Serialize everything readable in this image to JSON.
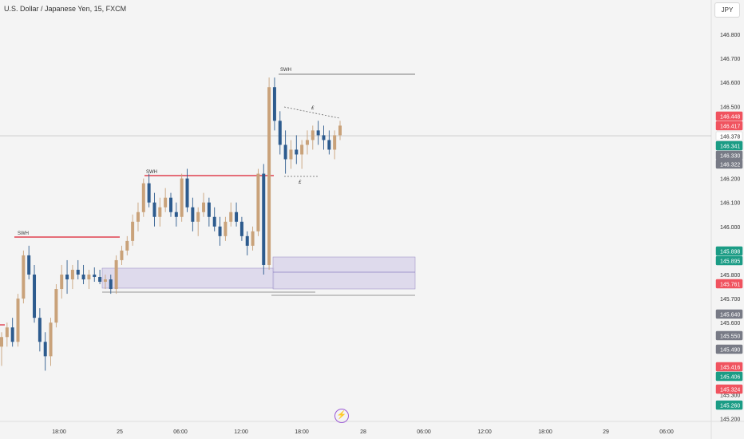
{
  "symbol_title": "U.S. Dollar / Japanese Yen, 15, FXCM",
  "currency": "JPY",
  "y_axis_ticks": [
    "146.800",
    "146.700",
    "146.600",
    "146.500",
    "146.200",
    "146.100",
    "146.000",
    "145.800",
    "145.700",
    "145.600",
    "145.300",
    "145.200"
  ],
  "x_axis_ticks": [
    "18:00",
    "25",
    "06:00",
    "12:00",
    "18:00",
    "28",
    "06:00",
    "12:00",
    "18:00",
    "29",
    "06:00"
  ],
  "price_labels": [
    {
      "text": "146.448",
      "color": "#f0535f"
    },
    {
      "text": "146.417",
      "color": "#f0535f"
    },
    {
      "text": "146.378",
      "color": "#ffffff",
      "text_color": "#333333"
    },
    {
      "text": "146.341",
      "color": "#1b9c85"
    },
    {
      "text": "146.330",
      "color": "#787b86"
    },
    {
      "text": "146.322",
      "color": "#787b86"
    },
    {
      "text": "145.898",
      "color": "#1b9c85"
    },
    {
      "text": "145.895",
      "color": "#1b9c85"
    },
    {
      "text": "145.761",
      "color": "#f0535f"
    },
    {
      "text": "145.640",
      "color": "#787b86"
    },
    {
      "text": "145.550",
      "color": "#787b86"
    },
    {
      "text": "145.490",
      "color": "#787b86"
    },
    {
      "text": "145.416",
      "color": "#f0535f"
    },
    {
      "text": "145.406",
      "color": "#1b9c85"
    },
    {
      "text": "145.324",
      "color": "#f0535f"
    },
    {
      "text": "145.260",
      "color": "#1b9c85"
    }
  ],
  "annotations": {
    "swh": "SWH",
    "eq": "£"
  },
  "colors": {
    "up": "#c9a27a",
    "down": "#2d5b8e",
    "swh_red": "#e0404f",
    "zone_fill": "#d7d2ea",
    "zone_border": "#a095c8"
  },
  "lightning_icon": "lightning-icon",
  "chart_data": {
    "type": "candlestick",
    "x_ticks": [
      "18:00",
      "25",
      "06:00",
      "12:00",
      "18:00",
      "28",
      "06:00",
      "12:00",
      "18:00",
      "29",
      "06:00"
    ],
    "y_ticks": [
      "146.800",
      "146.700",
      "146.600",
      "146.500",
      "146.200",
      "146.100",
      "146.000",
      "145.800",
      "145.700",
      "145.600",
      "145.300",
      "145.200"
    ],
    "ylim": [
      145.18,
      146.86
    ],
    "swh_levels": [
      145.935,
      146.216,
      146.64
    ],
    "candles": [
      [
        145.5,
        145.56,
        145.42,
        145.54
      ],
      [
        145.54,
        145.6,
        145.5,
        145.58
      ],
      [
        145.58,
        145.62,
        145.5,
        145.52
      ],
      [
        145.52,
        145.72,
        145.5,
        145.7
      ],
      [
        145.7,
        145.9,
        145.68,
        145.88
      ],
      [
        145.88,
        145.92,
        145.78,
        145.8
      ],
      [
        145.8,
        145.84,
        145.6,
        145.62
      ],
      [
        145.62,
        145.66,
        145.48,
        145.52
      ],
      [
        145.52,
        145.56,
        145.4,
        145.46
      ],
      [
        145.46,
        145.62,
        145.42,
        145.6
      ],
      [
        145.6,
        145.76,
        145.58,
        145.74
      ],
      [
        145.74,
        145.84,
        145.7,
        145.8
      ],
      [
        145.8,
        145.86,
        145.72,
        145.78
      ],
      [
        145.78,
        145.84,
        145.74,
        145.82
      ],
      [
        145.82,
        145.86,
        145.78,
        145.8
      ],
      [
        145.8,
        145.84,
        145.76,
        145.78
      ],
      [
        145.78,
        145.82,
        145.74,
        145.8
      ],
      [
        145.8,
        145.83,
        145.77,
        145.79
      ],
      [
        145.79,
        145.82,
        145.76,
        145.77
      ],
      [
        145.77,
        145.8,
        145.74,
        145.78
      ],
      [
        145.78,
        145.8,
        145.72,
        145.74
      ],
      [
        145.74,
        145.88,
        145.72,
        145.86
      ],
      [
        145.86,
        145.92,
        145.84,
        145.9
      ],
      [
        145.9,
        145.96,
        145.88,
        145.94
      ],
      [
        145.94,
        146.05,
        145.92,
        146.02
      ],
      [
        146.02,
        146.1,
        145.98,
        146.06
      ],
      [
        146.06,
        146.2,
        146.04,
        146.18
      ],
      [
        146.18,
        146.22,
        146.08,
        146.1
      ],
      [
        146.1,
        146.14,
        146.0,
        146.04
      ],
      [
        146.04,
        146.12,
        146.0,
        146.08
      ],
      [
        146.08,
        146.16,
        146.06,
        146.12
      ],
      [
        146.12,
        146.14,
        146.04,
        146.06
      ],
      [
        146.06,
        146.1,
        146.0,
        146.04
      ],
      [
        146.04,
        146.22,
        146.02,
        146.2
      ],
      [
        146.2,
        146.24,
        146.06,
        146.08
      ],
      [
        146.08,
        146.12,
        145.98,
        146.02
      ],
      [
        146.02,
        146.08,
        145.96,
        146.06
      ],
      [
        146.06,
        146.14,
        146.04,
        146.1
      ],
      [
        146.1,
        146.12,
        146.0,
        146.04
      ],
      [
        146.04,
        146.08,
        145.98,
        146.0
      ],
      [
        146.0,
        146.04,
        145.92,
        145.96
      ],
      [
        145.96,
        146.04,
        145.94,
        146.02
      ],
      [
        146.02,
        146.1,
        146.0,
        146.06
      ],
      [
        146.06,
        146.1,
        146.0,
        146.02
      ],
      [
        146.02,
        146.04,
        145.94,
        145.96
      ],
      [
        145.96,
        145.98,
        145.88,
        145.92
      ],
      [
        145.92,
        146.0,
        145.9,
        145.98
      ],
      [
        145.98,
        146.24,
        145.96,
        146.22
      ],
      [
        146.22,
        146.26,
        145.8,
        145.84
      ],
      [
        145.84,
        146.62,
        145.82,
        146.58
      ],
      [
        146.58,
        146.62,
        146.4,
        146.44
      ],
      [
        146.44,
        146.48,
        146.3,
        146.34
      ],
      [
        146.34,
        146.4,
        146.22,
        146.28
      ],
      [
        146.28,
        146.36,
        146.24,
        146.32
      ],
      [
        146.32,
        146.38,
        146.26,
        146.3
      ],
      [
        146.3,
        146.36,
        146.24,
        146.34
      ],
      [
        146.34,
        146.4,
        146.3,
        146.36
      ],
      [
        146.36,
        146.42,
        146.32,
        146.4
      ],
      [
        146.4,
        146.44,
        146.34,
        146.38
      ],
      [
        146.38,
        146.42,
        146.32,
        146.36
      ],
      [
        146.36,
        146.4,
        146.3,
        146.32
      ],
      [
        146.32,
        146.4,
        146.28,
        146.38
      ],
      [
        146.38,
        146.44,
        146.36,
        146.42
      ]
    ]
  }
}
